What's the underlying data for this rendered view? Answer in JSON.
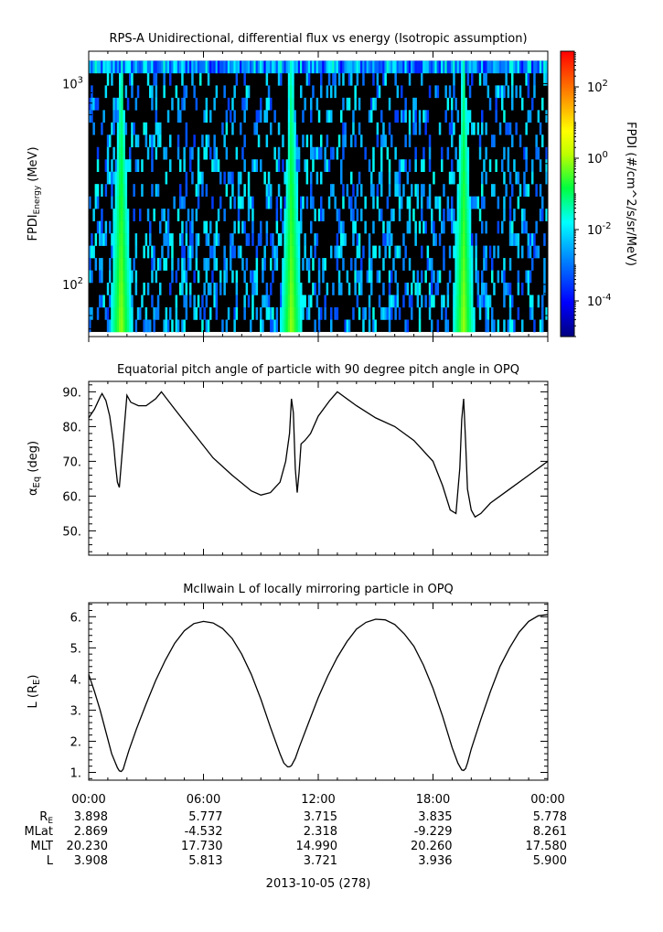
{
  "panels": {
    "p1": {
      "title": "RPS-A Unidirectional, differential flux vs energy (Isotropic assumption)",
      "ylabel_main": "FPDI",
      "ylabel_sub": "Energy",
      "ylabel_unit": " (MeV)",
      "y_ticks": [
        {
          "mant": "10",
          "exp": "3"
        },
        {
          "mant": "10",
          "exp": "2"
        }
      ],
      "colorbar_label": "FPDI (#/cm^2/s/sr/MeV)",
      "colorbar_ticks": [
        {
          "mant": "10",
          "exp": "2"
        },
        {
          "mant": "10",
          "exp": "0"
        },
        {
          "mant": "10",
          "exp": "-2"
        },
        {
          "mant": "10",
          "exp": "-4"
        }
      ]
    },
    "p2": {
      "title": "Equatorial pitch angle of particle with 90 degree pitch angle in OPQ",
      "ylabel_main": "α",
      "ylabel_sub": "Eq",
      "ylabel_unit": " (deg)",
      "y_ticks": [
        "90.",
        "80.",
        "70.",
        "60.",
        "50."
      ]
    },
    "p3": {
      "title": "McIlwain L of locally mirroring particle in OPQ",
      "ylabel_main": "L (R",
      "ylabel_sub": "E",
      "ylabel_unit": ")",
      "y_ticks": [
        "6.",
        "5.",
        "4.",
        "3.",
        "2.",
        "1."
      ]
    }
  },
  "x_tick_labels": [
    "00:00",
    "06:00",
    "12:00",
    "18:00",
    "00:00"
  ],
  "ephemeris": {
    "rows": [
      {
        "label": "R",
        "label_sub": "E",
        "values": [
          "3.898",
          "5.777",
          "3.715",
          "3.835",
          "5.778"
        ]
      },
      {
        "label": "MLat",
        "label_sub": "",
        "values": [
          "2.869",
          "-4.532",
          "2.318",
          "-9.229",
          "8.261"
        ]
      },
      {
        "label": "MLT",
        "label_sub": "",
        "values": [
          "20.230",
          "17.730",
          "14.990",
          "20.260",
          "17.580"
        ]
      },
      {
        "label": "L",
        "label_sub": "",
        "values": [
          "3.908",
          "5.813",
          "3.721",
          "3.936",
          "5.900"
        ]
      }
    ]
  },
  "date_label": "2013-10-05 (278)",
  "chart_data": [
    {
      "type": "heatmap",
      "title": "RPS-A Unidirectional, differential flux vs energy (Isotropic assumption)",
      "xlabel": "",
      "ylabel": "FPDI Energy (MeV)",
      "x_unit": "hours",
      "xlim": [
        0,
        24
      ],
      "ylim": [
        55,
        1450
      ],
      "y_scale": "log",
      "colorbar": {
        "label": "FPDI (#/cm^2/s/sr/MeV)",
        "scale": "log",
        "range": [
          1e-05,
          1000.0
        ]
      },
      "energy_top_mev": 1300,
      "energy_bottom_mev": 58,
      "belt_passes_hours": [
        1.7,
        10.6,
        19.6
      ],
      "background_level": "below colorbar minimum (black) with scattered 1e-4 to 1e-2 pixels",
      "peak_flux": 1.0
    },
    {
      "type": "line",
      "title": "Equatorial pitch angle of particle with 90 degree pitch angle in OPQ",
      "xlabel": "",
      "ylabel": "αEq (deg)",
      "x_unit": "hours",
      "xlim": [
        0,
        24
      ],
      "ylim": [
        43,
        93
      ],
      "x": [
        0,
        0.3,
        0.6,
        0.7,
        0.9,
        1.1,
        1.3,
        1.4,
        1.5,
        1.6,
        1.8,
        2.0,
        2.2,
        2.6,
        3.0,
        3.5,
        3.8,
        4.5,
        5.5,
        6.5,
        7.5,
        8.5,
        9.0,
        9.5,
        10.0,
        10.3,
        10.5,
        10.6,
        10.7,
        10.8,
        10.9,
        11.0,
        11.1,
        11.3,
        11.6,
        12.0,
        12.6,
        13.0,
        14.0,
        15.0,
        16.0,
        17.0,
        18.0,
        18.5,
        18.9,
        19.2,
        19.4,
        19.5,
        19.6,
        19.7,
        19.8,
        20.0,
        20.2,
        20.5,
        21.0,
        22.0,
        23.0,
        24.0
      ],
      "series": [
        {
          "values": [
            82.5,
            85,
            88.5,
            89.5,
            87.5,
            83,
            75,
            69,
            64,
            62.5,
            76,
            89,
            87,
            86,
            86,
            88,
            90,
            85,
            78,
            71,
            66,
            61.5,
            60.3,
            61,
            64,
            70,
            78,
            88,
            84,
            68,
            61,
            67,
            75,
            76,
            78,
            83,
            87.5,
            90,
            86,
            82.5,
            80,
            76,
            70,
            63,
            56,
            55,
            68,
            82,
            88,
            76,
            62,
            56,
            54,
            55,
            58,
            62,
            66,
            70
          ]
        }
      ]
    },
    {
      "type": "line",
      "title": "McIlwain L of locally mirroring particle in OPQ",
      "xlabel": "",
      "ylabel": "L (RE)",
      "x_unit": "hours",
      "xlim": [
        0,
        24
      ],
      "ylim": [
        0.75,
        6.45
      ],
      "x": [
        0,
        0.3,
        0.6,
        0.9,
        1.2,
        1.5,
        1.6,
        1.7,
        1.8,
        1.9,
        2.1,
        2.5,
        3.0,
        3.5,
        4.0,
        4.5,
        5.0,
        5.5,
        6.0,
        6.5,
        7.0,
        7.5,
        8.0,
        8.5,
        9.0,
        9.5,
        10.0,
        10.2,
        10.4,
        10.5,
        10.6,
        10.8,
        11.0,
        11.5,
        12.0,
        12.5,
        13.0,
        13.5,
        14.0,
        14.5,
        15.0,
        15.5,
        16.0,
        16.5,
        17.0,
        17.5,
        18.0,
        18.5,
        19.0,
        19.3,
        19.5,
        19.6,
        19.7,
        19.8,
        20.0,
        20.5,
        21.0,
        21.5,
        22.0,
        22.5,
        23.0,
        23.5,
        24.0
      ],
      "series": [
        {
          "values": [
            4.15,
            3.6,
            3.0,
            2.3,
            1.6,
            1.15,
            1.05,
            1.03,
            1.1,
            1.3,
            1.7,
            2.4,
            3.2,
            3.95,
            4.6,
            5.15,
            5.55,
            5.78,
            5.85,
            5.8,
            5.62,
            5.3,
            4.8,
            4.15,
            3.35,
            2.45,
            1.6,
            1.3,
            1.18,
            1.18,
            1.22,
            1.45,
            1.8,
            2.6,
            3.4,
            4.1,
            4.7,
            5.2,
            5.6,
            5.82,
            5.92,
            5.9,
            5.75,
            5.45,
            5.05,
            4.45,
            3.7,
            2.8,
            1.8,
            1.3,
            1.08,
            1.06,
            1.12,
            1.3,
            1.75,
            2.7,
            3.6,
            4.4,
            5.0,
            5.5,
            5.85,
            6.03,
            6.07
          ]
        }
      ]
    }
  ]
}
